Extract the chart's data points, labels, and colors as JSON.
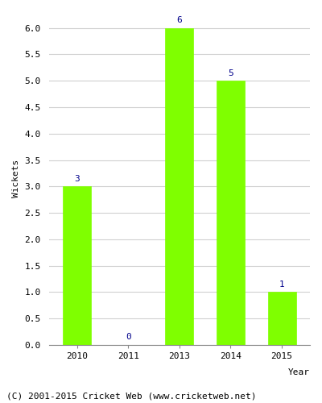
{
  "years": [
    "2010",
    "2011",
    "2013",
    "2014",
    "2015"
  ],
  "values": [
    3,
    0,
    6,
    5,
    1
  ],
  "bar_color": "#7fff00",
  "bar_edge_color": "#7fff00",
  "xlabel": "Year",
  "ylabel": "Wickets",
  "ylim": [
    0,
    6.3
  ],
  "yticks": [
    0.0,
    0.5,
    1.0,
    1.5,
    2.0,
    2.5,
    3.0,
    3.5,
    4.0,
    4.5,
    5.0,
    5.5,
    6.0
  ],
  "annotation_color": "#00008b",
  "annotation_fontsize": 8,
  "axis_label_fontsize": 8,
  "tick_fontsize": 8,
  "footer_text": "(C) 2001-2015 Cricket Web (www.cricketweb.net)",
  "footer_fontsize": 8,
  "bg_color": "#ffffff",
  "grid_color": "#d0d0d0",
  "bar_width": 0.55
}
